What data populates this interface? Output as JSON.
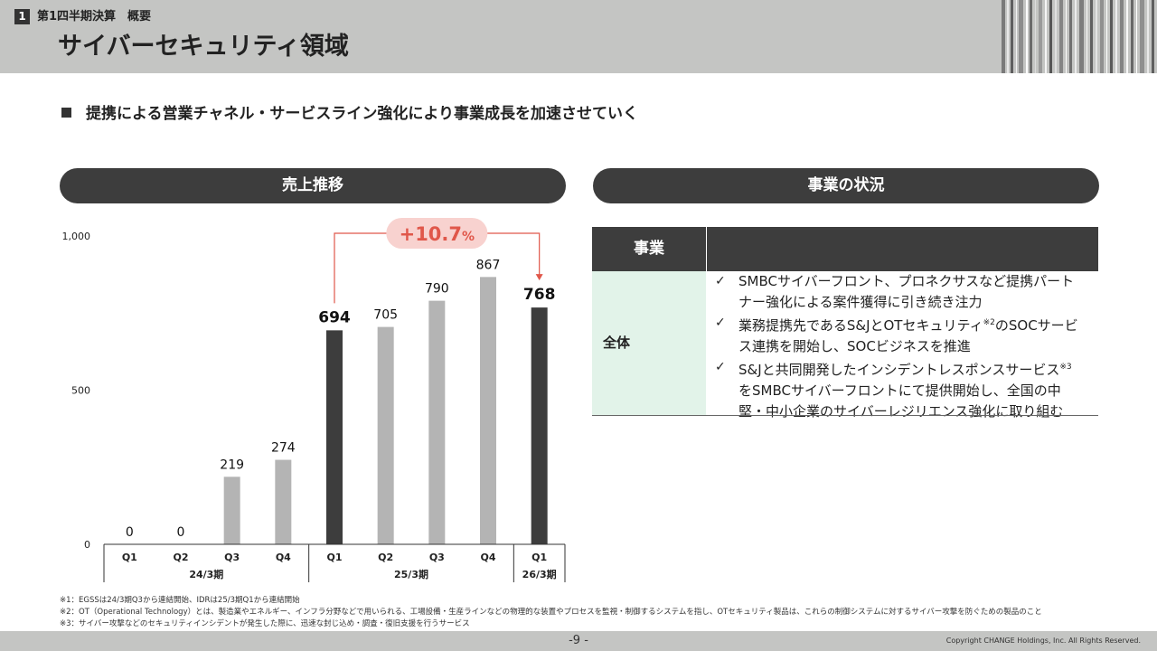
{
  "header": {
    "section_number": "1",
    "section_label": "第1四半期決算　概要",
    "title": "サイバーセキュリティ領域"
  },
  "lead": "提携による営業チャネル・サービスライン強化により事業成長を加速させていく",
  "left_panel": {
    "title": "売上推移"
  },
  "right_panel": {
    "title": "事業の状況"
  },
  "chart_data": {
    "type": "bar",
    "categories": [
      "Q1",
      "Q2",
      "Q3",
      "Q4",
      "Q1",
      "Q2",
      "Q3",
      "Q4",
      "Q1"
    ],
    "values": [
      0,
      0,
      219,
      274,
      694,
      705,
      790,
      867,
      768
    ],
    "highlight": [
      false,
      false,
      false,
      false,
      true,
      false,
      false,
      false,
      true
    ],
    "groups": [
      {
        "label": "24/3期",
        "start": 0,
        "end": 3
      },
      {
        "label": "25/3期",
        "start": 4,
        "end": 7
      },
      {
        "label": "26/3期",
        "start": 8,
        "end": 8
      }
    ],
    "y_ticks": [
      0,
      500,
      1000
    ],
    "y_tick_labels": [
      "0",
      "500",
      "1,000"
    ],
    "ylim": [
      0,
      1000
    ],
    "colors": {
      "highlight": "#3d3d3d",
      "normal": "#b4b4b4",
      "annotation": "#e0574a",
      "annotation_bg": "#f8d2cf"
    },
    "growth_annotation": {
      "text": "+10.7",
      "unit": "%",
      "from_index": 4,
      "to_index": 8
    }
  },
  "table": {
    "headers": [
      "事業",
      ""
    ],
    "rows": [
      {
        "label": "全体",
        "items": [
          {
            "text": "SMBCサイバーフロント、プロネクサスなど提携パートナー強化による案件獲得に引き続き注力"
          },
          {
            "text_before": "業務提携先であるS&JとOTセキュリティ",
            "note": "※2",
            "text_after": "のSOCサービス連携を開始し、SOCビジネスを推進"
          },
          {
            "text_before": "S&Jと共同開発したインシデントレスポンスサービス",
            "note": "※3",
            "text_after": "をSMBCサイバーフロントにて提供開始し、全国の中堅・中小企業のサイバーレジリエンス強化に取り組む"
          }
        ]
      }
    ]
  },
  "check_icon": "✓",
  "notes": [
    "※1：EGSSは24/3期Q3から連結開始、IDRは25/3期Q1から連結開始",
    "※2：OT（Operational Technology）とは、製造業やエネルギー、インフラ分野などで用いられる、工場設備・生産ラインなどの物理的な装置やプロセスを監視・制御するシステムを指し、OTセキュリティ製品は、これらの制御システムに対するサイバー攻撃を防ぐための製品のこと",
    "※3：サイバー攻撃などのセキュリティインシデントが発生した際に、迅速な封じ込め・調査・復旧支援を行うサービス"
  ],
  "footer": {
    "page_number": "-9 -",
    "copyright": "Copyright CHANGE Holdings, Inc. All Rights Reserved."
  }
}
